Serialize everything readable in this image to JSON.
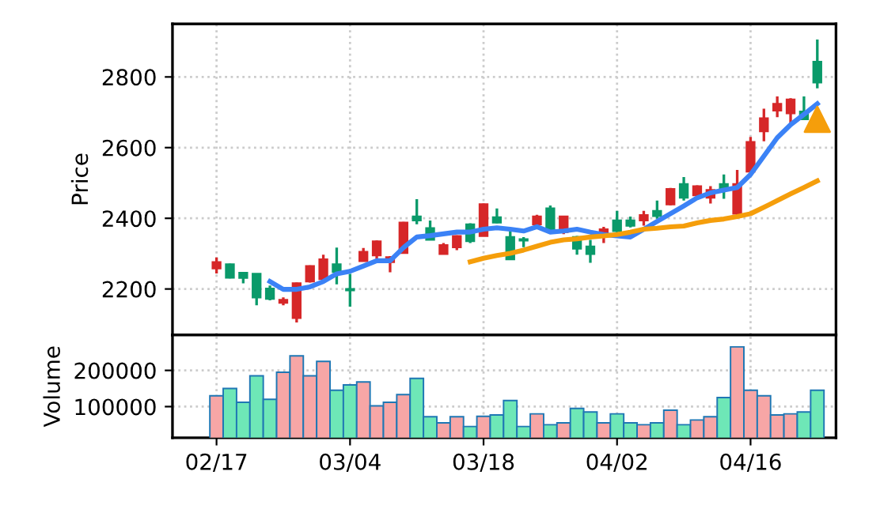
{
  "chart_data": [
    {
      "type": "candlestick",
      "ylabel": "Price",
      "grid": true,
      "ylim": [
        2070,
        2950
      ],
      "yticks": [
        2200,
        2400,
        2600,
        2800
      ],
      "categories": [
        null,
        null,
        null,
        null,
        null,
        null,
        null,
        null,
        null,
        null,
        null,
        null,
        null,
        null,
        null,
        null,
        null,
        null,
        null,
        null,
        null,
        null,
        null,
        null,
        null,
        null,
        null,
        null,
        null,
        null,
        null,
        null,
        null,
        null,
        null,
        null,
        null,
        null,
        null,
        null,
        null,
        null,
        null,
        null,
        null,
        null
      ],
      "ohlc": [
        [
          2258,
          2289,
          2244,
          2276
        ],
        [
          2270,
          2272,
          2230,
          2232
        ],
        [
          2246,
          2246,
          2216,
          2231
        ],
        [
          2243,
          2243,
          2154,
          2176
        ],
        [
          2201,
          2210,
          2168,
          2172
        ],
        [
          2161,
          2176,
          2154,
          2169
        ],
        [
          2118,
          2218,
          2105,
          2216
        ],
        [
          2221,
          2267,
          2218,
          2265
        ],
        [
          2228,
          2297,
          2225,
          2284
        ],
        [
          2270,
          2317,
          2213,
          2248
        ],
        [
          2200,
          2243,
          2150,
          2196
        ],
        [
          2279,
          2316,
          2279,
          2305
        ],
        [
          2295,
          2337,
          2285,
          2335
        ],
        [
          2276,
          2293,
          2247,
          2290
        ],
        [
          2302,
          2390,
          2300,
          2388
        ],
        [
          2405,
          2454,
          2383,
          2394
        ],
        [
          2372,
          2394,
          2339,
          2339
        ],
        [
          2299,
          2330,
          2299,
          2324
        ],
        [
          2318,
          2352,
          2310,
          2350
        ],
        [
          2383,
          2386,
          2330,
          2335
        ],
        [
          2350,
          2442,
          2350,
          2440
        ],
        [
          2403,
          2428,
          2386,
          2388
        ],
        [
          2347,
          2364,
          2284,
          2284
        ],
        [
          2341,
          2347,
          2318,
          2337
        ],
        [
          2383,
          2410,
          2380,
          2405
        ],
        [
          2428,
          2436,
          2366,
          2369
        ],
        [
          2361,
          2407,
          2355,
          2405
        ],
        [
          2347,
          2350,
          2297,
          2314
        ],
        [
          2320,
          2339,
          2274,
          2299
        ],
        [
          2354,
          2376,
          2330,
          2369
        ],
        [
          2394,
          2421,
          2361,
          2364
        ],
        [
          2394,
          2405,
          2374,
          2379
        ],
        [
          2394,
          2421,
          2379,
          2409
        ],
        [
          2421,
          2450,
          2399,
          2406
        ],
        [
          2439,
          2486,
          2437,
          2483
        ],
        [
          2497,
          2517,
          2450,
          2458
        ],
        [
          2465,
          2493,
          2460,
          2491
        ],
        [
          2458,
          2491,
          2442,
          2480
        ],
        [
          2497,
          2524,
          2455,
          2480
        ],
        [
          2413,
          2537,
          2410,
          2497
        ],
        [
          2532,
          2630,
          2530,
          2616
        ],
        [
          2646,
          2710,
          2618,
          2683
        ],
        [
          2705,
          2745,
          2686,
          2724
        ],
        [
          2697,
          2740,
          2668,
          2736
        ],
        [
          2702,
          2745,
          2680,
          2680
        ],
        [
          2843,
          2906,
          2768,
          2784
        ]
      ],
      "colors": [
        "#d62728",
        "#0a9a6a",
        "#0a9a6a",
        "#0a9a6a",
        "#0a9a6a",
        "#d62728",
        "#d62728",
        "#d62728",
        "#d62728",
        "#0a9a6a",
        "#0a9a6a",
        "#d62728",
        "#d62728",
        "#d62728",
        "#d62728",
        "#0a9a6a",
        "#0a9a6a",
        "#d62728",
        "#d62728",
        "#0a9a6a",
        "#d62728",
        "#0a9a6a",
        "#0a9a6a",
        "#0a9a6a",
        "#d62728",
        "#0a9a6a",
        "#d62728",
        "#0a9a6a",
        "#0a9a6a",
        "#d62728",
        "#0a9a6a",
        "#0a9a6a",
        "#d62728",
        "#0a9a6a",
        "#d62728",
        "#0a9a6a",
        "#d62728",
        "#d62728",
        "#0a9a6a",
        "#d62728",
        "#d62728",
        "#d62728",
        "#d62728",
        "#d62728",
        "#0a9a6a",
        "#0a9a6a"
      ],
      "series": [
        {
          "type": "line",
          "color": "#3b82f6",
          "values": [
            null,
            null,
            null,
            null,
            2221,
            2199,
            2199,
            2206,
            2221,
            2243,
            2250,
            2265,
            2280,
            2280,
            2317,
            2347,
            2351,
            2356,
            2361,
            2361,
            2369,
            2373,
            2369,
            2364,
            2376,
            2361,
            2364,
            2369,
            2361,
            2354,
            2350,
            2347,
            2369,
            2391,
            2413,
            2435,
            2458,
            2472,
            2480,
            2487,
            2524,
            2576,
            2628,
            2665,
            2694,
            2724
          ]
        },
        {
          "type": "line",
          "color": "#f59e0b",
          "values": [
            null,
            null,
            null,
            null,
            null,
            null,
            null,
            null,
            null,
            null,
            null,
            null,
            null,
            null,
            null,
            null,
            null,
            null,
            null,
            2277,
            2287,
            2295,
            2301,
            2310,
            2321,
            2332,
            2339,
            2342,
            2347,
            2350,
            2354,
            2361,
            2369,
            2372,
            2376,
            2378,
            2387,
            2394,
            2398,
            2405,
            2413,
            2431,
            2450,
            2469,
            2487,
            2506
          ]
        },
        {
          "type": "scatter",
          "marker": "triangle",
          "color": "#f59e0b",
          "values": [
            null,
            null,
            null,
            null,
            null,
            null,
            null,
            null,
            null,
            null,
            null,
            null,
            null,
            null,
            null,
            null,
            null,
            null,
            null,
            null,
            null,
            null,
            null,
            null,
            null,
            null,
            null,
            null,
            null,
            null,
            null,
            null,
            null,
            null,
            null,
            null,
            null,
            null,
            null,
            null,
            null,
            null,
            null,
            null,
            null,
            2680
          ]
        }
      ]
    },
    {
      "type": "bar",
      "ylabel": "Volume",
      "grid": true,
      "ylim": [
        14000,
        298000
      ],
      "yticks": [
        100000,
        200000
      ],
      "categories": [
        "02/17",
        null,
        null,
        null,
        null,
        null,
        null,
        null,
        null,
        null,
        "03/04",
        null,
        null,
        null,
        null,
        null,
        null,
        null,
        null,
        null,
        "03/18",
        null,
        null,
        null,
        null,
        null,
        null,
        null,
        null,
        null,
        "04/02",
        null,
        null,
        null,
        null,
        null,
        null,
        null,
        null,
        null,
        "04/16",
        null,
        null,
        null,
        null,
        null
      ],
      "values": [
        130000,
        150000,
        112000,
        185000,
        120000,
        195000,
        240000,
        185000,
        225000,
        145000,
        160000,
        168000,
        102000,
        112000,
        133000,
        178000,
        72000,
        55000,
        72000,
        45000,
        73000,
        77000,
        117000,
        45000,
        80000,
        50000,
        55000,
        95000,
        85000,
        55000,
        80000,
        55000,
        50000,
        55000,
        90000,
        50000,
        63000,
        72000,
        125000,
        265000,
        145000,
        130000,
        77000,
        80000,
        85000,
        145000
      ],
      "colors": [
        "#f7a6a6",
        "#6ee7b7",
        "#6ee7b7",
        "#6ee7b7",
        "#6ee7b7",
        "#f7a6a6",
        "#f7a6a6",
        "#f7a6a6",
        "#f7a6a6",
        "#6ee7b7",
        "#6ee7b7",
        "#f7a6a6",
        "#f7a6a6",
        "#f7a6a6",
        "#f7a6a6",
        "#6ee7b7",
        "#6ee7b7",
        "#f7a6a6",
        "#f7a6a6",
        "#6ee7b7",
        "#f7a6a6",
        "#6ee7b7",
        "#6ee7b7",
        "#6ee7b7",
        "#f7a6a6",
        "#6ee7b7",
        "#f7a6a6",
        "#6ee7b7",
        "#6ee7b7",
        "#f7a6a6",
        "#6ee7b7",
        "#6ee7b7",
        "#f7a6a6",
        "#6ee7b7",
        "#f7a6a6",
        "#6ee7b7",
        "#f7a6a6",
        "#f7a6a6",
        "#6ee7b7",
        "#f7a6a6",
        "#f7a6a6",
        "#f7a6a6",
        "#f7a6a6",
        "#f7a6a6",
        "#6ee7b7",
        "#6ee7b7"
      ]
    }
  ]
}
